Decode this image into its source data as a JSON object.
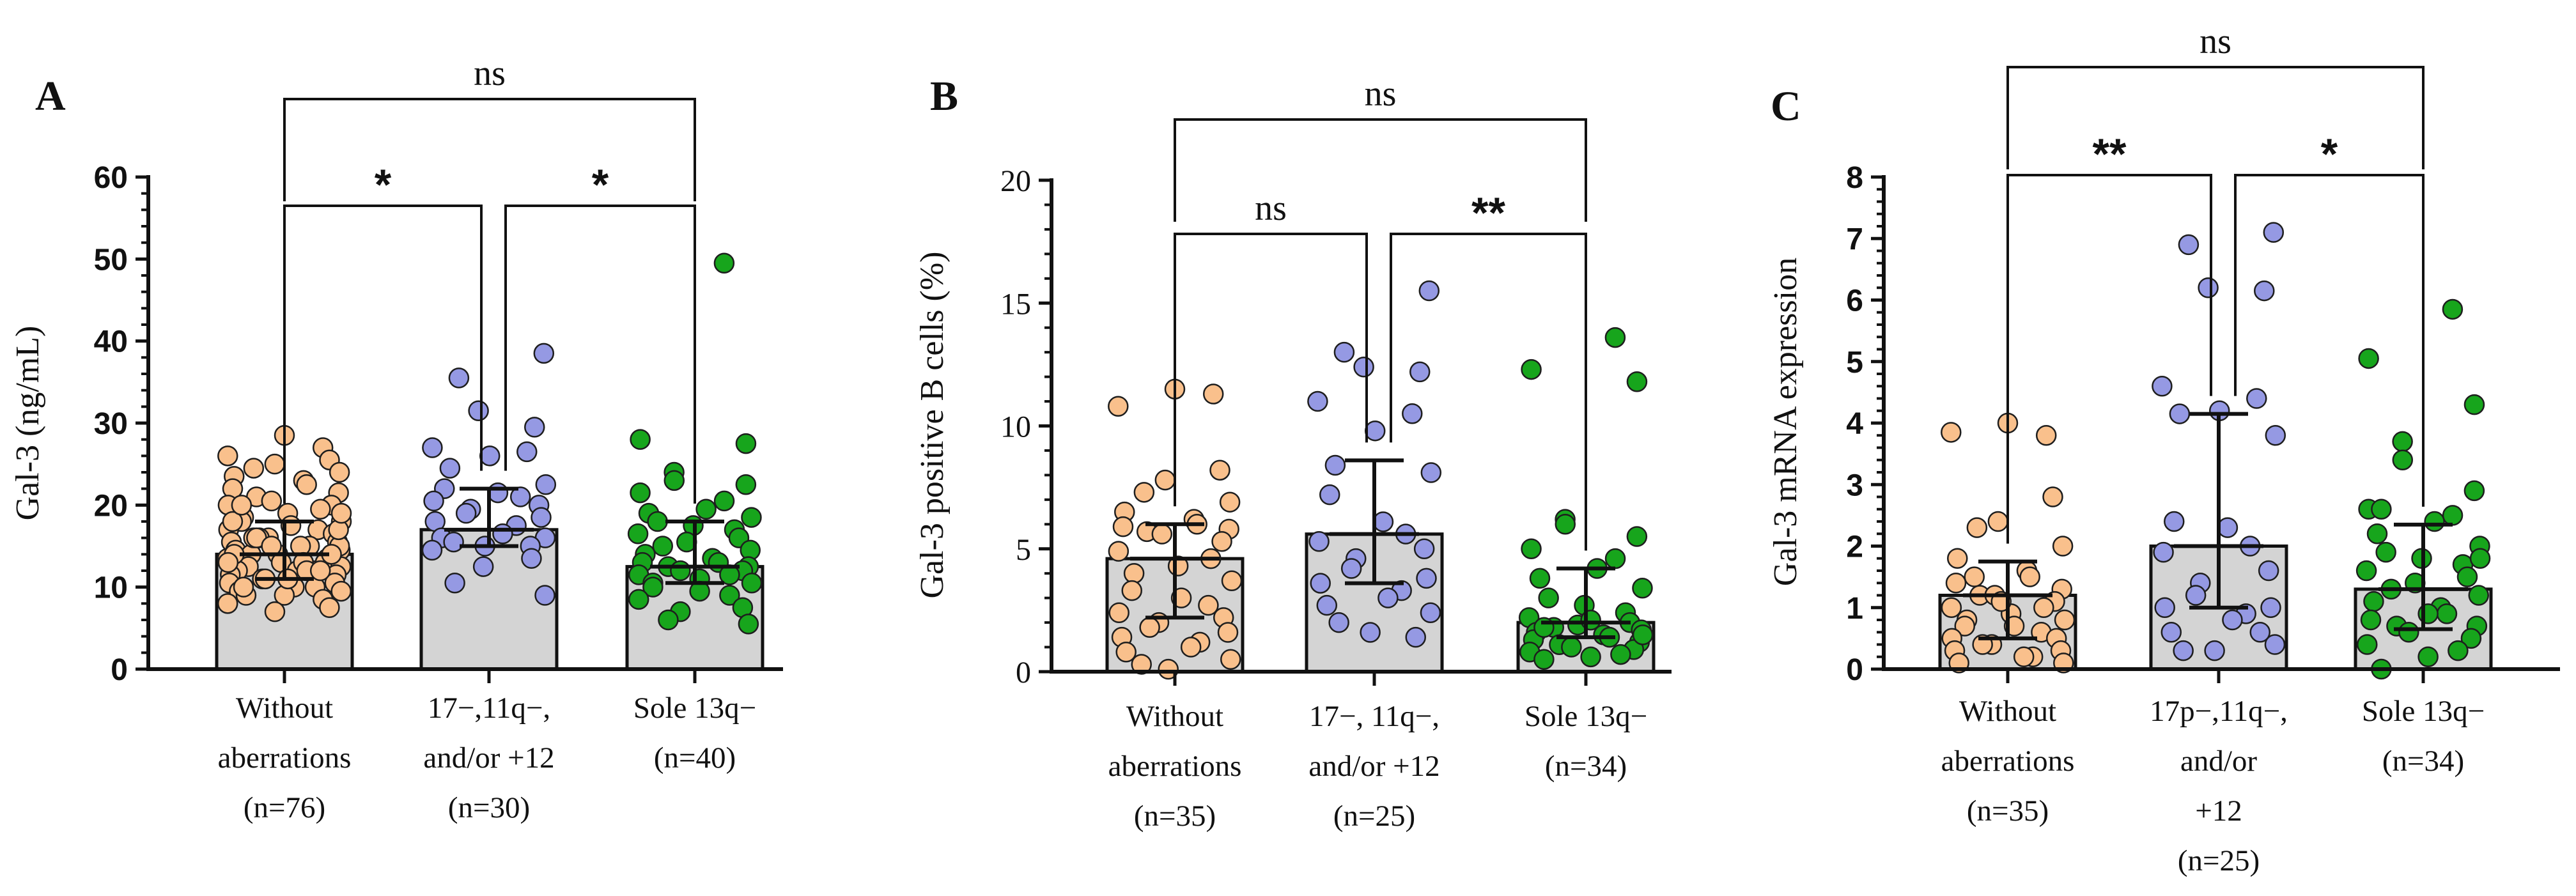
{
  "colors": {
    "bar_fill": "#d4d4d4",
    "axis": "#111111",
    "group_colors": [
      "#f9c08c",
      "#9599e3",
      "#17a51c"
    ],
    "marker_stroke": "#1e1e1e"
  },
  "chart_data": [
    {
      "type": "bar",
      "panel_label": "A",
      "ylabel": "Gal-3 (ng/mL)",
      "ylim": [
        0,
        60
      ],
      "yticks": [
        0,
        10,
        20,
        30,
        40,
        50,
        60
      ],
      "categories": [
        [
          "Without",
          "aberrations",
          "(n=76)"
        ],
        [
          "17−,11q−,",
          "and/or +12",
          "(n=30)"
        ],
        [
          "Sole 13q−",
          "(n=40)"
        ]
      ],
      "bars": [
        {
          "mean": 14,
          "err_low": 11,
          "err_high": 18
        },
        {
          "mean": 17,
          "err_low": 15,
          "err_high": 22
        },
        {
          "mean": 12.5,
          "err_low": 10.5,
          "err_high": 18
        }
      ],
      "points": [
        [
          28.5,
          27,
          26,
          25.5,
          25,
          24.5,
          24,
          23.5,
          23,
          22.5,
          22,
          21.5,
          21,
          20.5,
          20,
          20,
          19.5,
          19,
          18.5,
          18,
          18,
          17.5,
          17,
          17,
          16.5,
          16,
          16,
          15.5,
          15.5,
          15,
          15,
          14.5,
          14.5,
          14,
          14,
          13.5,
          13.5,
          13,
          13,
          12.5,
          12.5,
          12,
          12,
          12,
          11.5,
          11.5,
          11,
          11,
          10.5,
          10.5,
          10,
          10,
          9.5,
          9.5,
          9,
          9,
          8.5,
          8,
          7.5,
          7,
          16,
          15,
          14,
          13,
          12,
          18,
          17,
          16,
          15,
          14,
          13,
          12,
          11,
          10,
          19,
          20
        ],
        [
          38.5,
          35.5,
          31.5,
          29.5,
          27,
          26.5,
          26,
          24.5,
          22.5,
          22,
          21.5,
          21,
          20.5,
          20,
          19.5,
          19,
          18.5,
          18,
          17.5,
          16.5,
          16,
          16,
          15.5,
          15,
          15,
          14.5,
          13.5,
          12.5,
          10.5,
          9
        ],
        [
          49.5,
          28,
          27.5,
          24,
          23,
          22.5,
          21.5,
          20.5,
          19.5,
          19,
          18.5,
          18,
          17.5,
          17,
          16.5,
          16,
          15.5,
          15,
          14.5,
          14,
          13.5,
          13,
          13,
          12.5,
          12.5,
          12,
          12,
          11.5,
          11.5,
          11,
          10.5,
          10.5,
          10,
          9.5,
          9,
          8.5,
          7.5,
          7,
          6,
          5.5
        ]
      ],
      "comparisons": [
        {
          "from": 0,
          "to": 1,
          "label": "*"
        },
        {
          "from": 1,
          "to": 2,
          "label": "*"
        },
        {
          "from": 0,
          "to": 2,
          "label": "ns"
        }
      ]
    },
    {
      "type": "bar",
      "panel_label": "B",
      "ylabel": "Gal-3 positive B cells (%)",
      "ylim": [
        0,
        20
      ],
      "yticks": [
        0,
        5,
        10,
        15,
        20
      ],
      "categories": [
        [
          "Without",
          "aberrations",
          "(n=35)"
        ],
        [
          "17−, 11q−,",
          "and/or +12",
          "(n=25)"
        ],
        [
          "Sole 13q−",
          "(n=34)"
        ]
      ],
      "bars": [
        {
          "mean": 4.6,
          "err_low": 2.2,
          "err_high": 6.0
        },
        {
          "mean": 5.6,
          "err_low": 3.6,
          "err_high": 8.6
        },
        {
          "mean": 2.0,
          "err_low": 1.4,
          "err_high": 4.2
        }
      ],
      "points": [
        [
          11.5,
          11.3,
          10.8,
          8.2,
          7.8,
          7.3,
          6.9,
          6.5,
          6.2,
          6.0,
          5.9,
          5.8,
          5.7,
          5.6,
          5.3,
          4.9,
          4.6,
          4.3,
          4.0,
          3.7,
          3.3,
          3.0,
          2.7,
          2.4,
          2.2,
          2.0,
          1.8,
          1.6,
          1.4,
          1.2,
          1.0,
          0.8,
          0.5,
          0.3,
          0.1
        ],
        [
          15.5,
          13.0,
          12.4,
          12.2,
          11.0,
          10.5,
          9.8,
          8.4,
          8.1,
          7.2,
          6.1,
          5.6,
          5.3,
          5.0,
          4.6,
          4.2,
          3.8,
          3.6,
          3.3,
          3.0,
          2.7,
          2.4,
          2.0,
          1.6,
          1.4
        ],
        [
          13.6,
          12.3,
          11.8,
          6.2,
          6.0,
          5.5,
          5.0,
          4.6,
          4.2,
          3.8,
          3.4,
          3.0,
          2.7,
          2.4,
          2.2,
          2.0,
          1.9,
          1.8,
          1.7,
          1.6,
          1.5,
          1.4,
          1.3,
          1.2,
          1.1,
          1.0,
          0.9,
          0.8,
          0.7,
          0.6,
          0.5,
          1.5,
          1.8,
          2.1
        ]
      ],
      "comparisons": [
        {
          "from": 0,
          "to": 1,
          "label": "ns"
        },
        {
          "from": 1,
          "to": 2,
          "label": "**"
        },
        {
          "from": 0,
          "to": 2,
          "label": "ns"
        }
      ]
    },
    {
      "type": "bar",
      "panel_label": "C",
      "ylabel": "Gal-3 mRNA expression",
      "ylim": [
        0,
        8
      ],
      "yticks": [
        0,
        1,
        2,
        3,
        4,
        5,
        6,
        7,
        8
      ],
      "categories": [
        [
          "Without",
          "aberrations",
          "(n=35)"
        ],
        [
          "17p−,11q−,",
          "and/or",
          "+12",
          "(n=25)"
        ],
        [
          "Sole 13q−",
          "(n=34)"
        ]
      ],
      "bars": [
        {
          "mean": 1.2,
          "err_low": 0.5,
          "err_high": 1.75
        },
        {
          "mean": 2.0,
          "err_low": 1.0,
          "err_high": 4.15
        },
        {
          "mean": 1.3,
          "err_low": 0.65,
          "err_high": 2.35
        }
      ],
      "points": [
        [
          4.0,
          3.8,
          3.85,
          2.8,
          2.4,
          2.3,
          2.0,
          1.8,
          1.6,
          1.5,
          1.4,
          1.3,
          1.2,
          1.2,
          1.1,
          1.0,
          1.0,
          0.9,
          0.8,
          0.8,
          0.7,
          0.7,
          0.6,
          0.5,
          0.5,
          0.4,
          0.4,
          0.3,
          0.3,
          0.2,
          0.2,
          0.1,
          0.1,
          1.5,
          1.1
        ],
        [
          7.1,
          6.9,
          6.2,
          6.15,
          4.6,
          4.4,
          4.2,
          4.15,
          3.8,
          2.4,
          2.3,
          2.0,
          1.9,
          1.6,
          1.4,
          1.2,
          1.0,
          1.0,
          0.9,
          0.8,
          0.6,
          0.4,
          0.3,
          0.3,
          0.6
        ],
        [
          5.85,
          5.05,
          4.3,
          3.7,
          3.4,
          2.9,
          2.6,
          2.5,
          2.4,
          2.2,
          2.0,
          1.9,
          1.8,
          1.7,
          1.6,
          1.5,
          1.4,
          1.3,
          1.2,
          1.1,
          1.0,
          0.9,
          0.8,
          0.7,
          0.7,
          0.6,
          0.5,
          0.4,
          0.3,
          0.2,
          0.0,
          1.8,
          2.6,
          0.9
        ]
      ],
      "comparisons": [
        {
          "from": 0,
          "to": 1,
          "label": "**"
        },
        {
          "from": 1,
          "to": 2,
          "label": "*"
        },
        {
          "from": 0,
          "to": 2,
          "label": "ns"
        }
      ]
    }
  ]
}
